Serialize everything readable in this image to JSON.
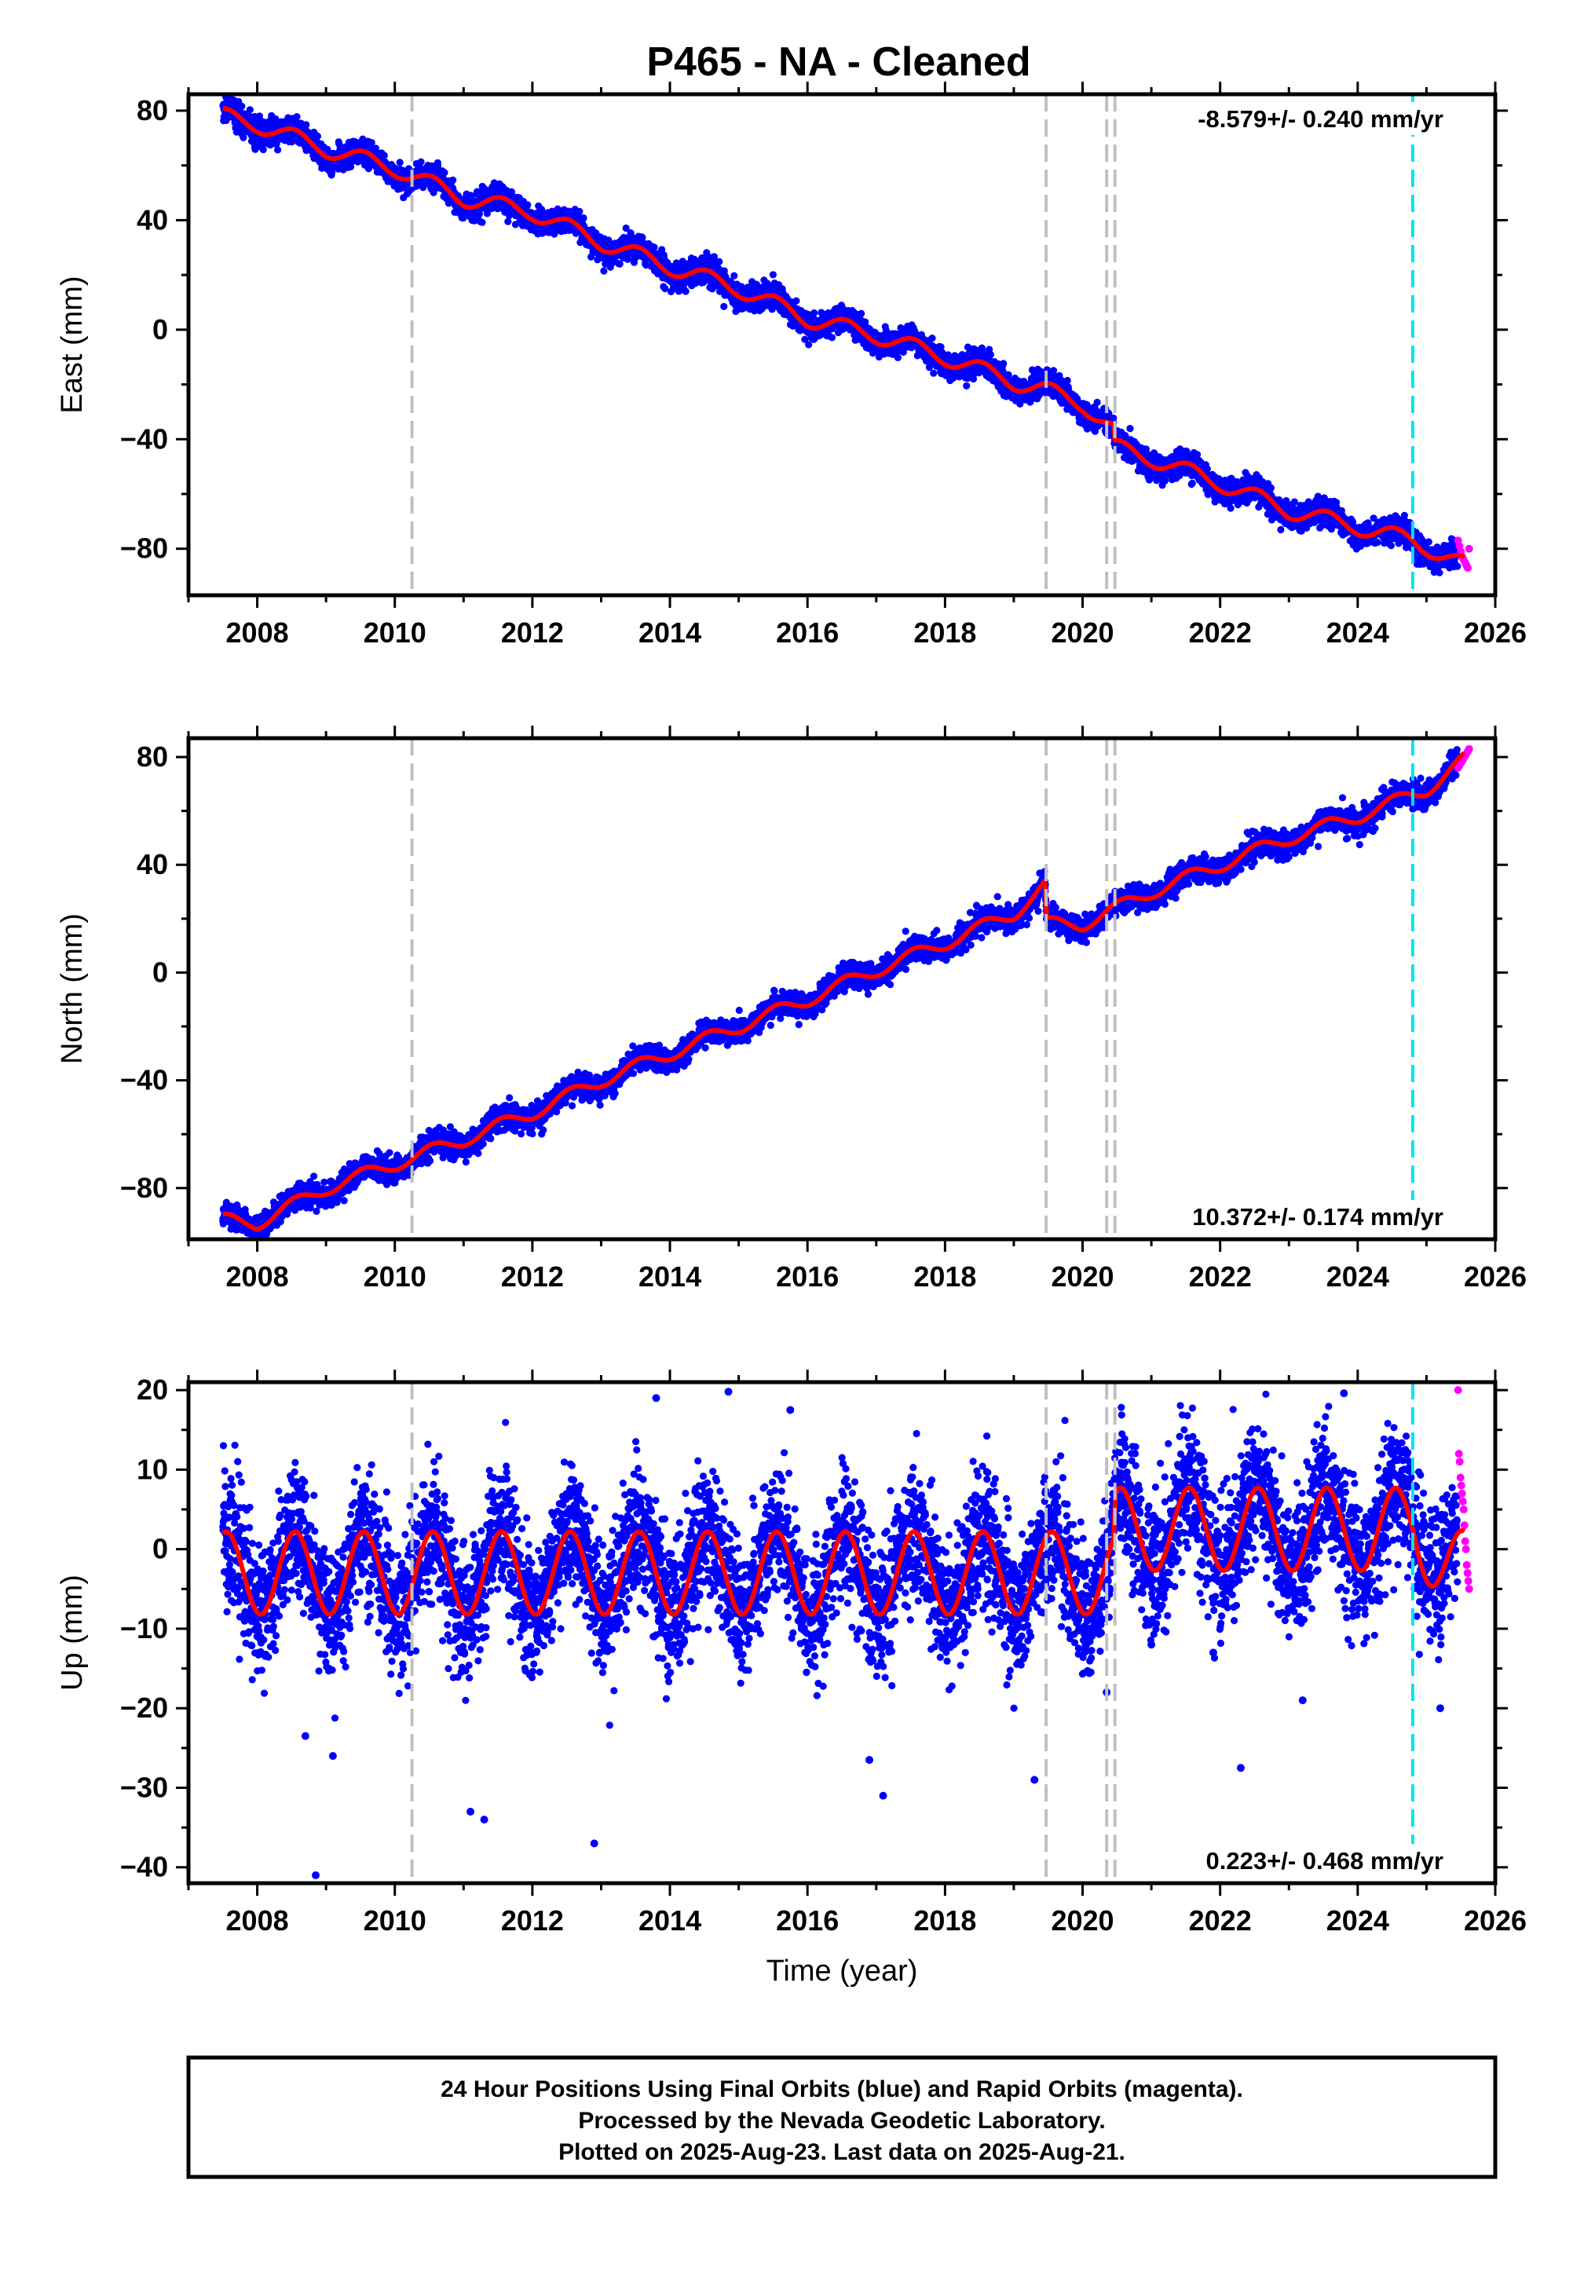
{
  "title": "P465  - NA - Cleaned",
  "colors": {
    "final_points": "#0000ff",
    "rapid_points": "#ff00ff",
    "model": "#ff0000",
    "event_lines": "#c0c0c0",
    "equipment_line": "#00e5ee"
  },
  "chart_data": [
    {
      "type": "scatter",
      "component": "East",
      "ylabel": "East (mm)",
      "xlabel": "",
      "xlim": [
        2007.0,
        2026.0
      ],
      "ylim": [
        -97,
        86
      ],
      "yticks": [
        80,
        40,
        0,
        -40,
        -80
      ],
      "ytick_labels": [
        "80",
        "40",
        "0",
        "−40",
        "−80"
      ],
      "xticks": [
        2008,
        2010,
        2012,
        2014,
        2016,
        2018,
        2020,
        2022,
        2024,
        2026
      ],
      "rate_label": "-8.579+/- 0.240 mm/yr",
      "rate_position": "top-right",
      "event_lines": [
        2010.25,
        2019.47,
        2020.35,
        2020.47
      ],
      "equipment_line": 2024.8,
      "start_value": 79,
      "final_x_end": 2025.45,
      "end_value": -86,
      "steps": [
        {
          "x": 2020.45,
          "value": -6
        }
      ],
      "annual_amplitude": 3,
      "noise_sd": 2.3,
      "model_anchors": [
        [
          2007.5,
          78
        ],
        [
          2008.0,
          75
        ],
        [
          2009.0,
          66
        ],
        [
          2010.0,
          59
        ],
        [
          2011.0,
          48
        ],
        [
          2012.0,
          43
        ],
        [
          2013.0,
          32
        ],
        [
          2014.0,
          23
        ],
        [
          2015.0,
          15
        ],
        [
          2016.0,
          4
        ],
        [
          2017.0,
          -2
        ],
        [
          2018.0,
          -10
        ],
        [
          2019.0,
          -19
        ],
        [
          2019.45,
          -22
        ],
        [
          2020.0,
          -27
        ],
        [
          2020.45,
          -37
        ],
        [
          2020.47,
          -43
        ],
        [
          2021.0,
          -47
        ],
        [
          2022.0,
          -56
        ],
        [
          2023.0,
          -66
        ],
        [
          2024.0,
          -72
        ],
        [
          2024.8,
          -77
        ],
        [
          2025.55,
          -86
        ]
      ],
      "rapid_points": {
        "x_start": 2025.46,
        "x_end": 2025.62,
        "values": [
          -77,
          -79,
          -81,
          -83,
          -84,
          -85,
          -86,
          -87,
          -80
        ]
      }
    },
    {
      "type": "scatter",
      "component": "North",
      "ylabel": "North (mm)",
      "xlabel": "",
      "xlim": [
        2007.0,
        2026.0
      ],
      "ylim": [
        -99,
        87
      ],
      "yticks": [
        80,
        40,
        0,
        -40,
        -80
      ],
      "ytick_labels": [
        "80",
        "40",
        "0",
        "−40",
        "−80"
      ],
      "xticks": [
        2008,
        2010,
        2012,
        2014,
        2016,
        2018,
        2020,
        2022,
        2024,
        2026
      ],
      "rate_label": "10.372+/- 0.174 mm/yr",
      "rate_position": "bottom-right",
      "event_lines": [
        2010.25,
        2019.47,
        2020.35,
        2020.47
      ],
      "equipment_line": 2024.8,
      "start_value": -92,
      "final_x_end": 2025.45,
      "end_value": 79,
      "steps": [
        {
          "x": 2019.47,
          "value": -14
        }
      ],
      "annual_amplitude": 2.5,
      "noise_sd": 2.2,
      "model_anchors": [
        [
          2007.5,
          -92
        ],
        [
          2008.0,
          -93
        ],
        [
          2009.0,
          -80
        ],
        [
          2010.0,
          -71
        ],
        [
          2011.0,
          -62
        ],
        [
          2012.0,
          -52
        ],
        [
          2013.0,
          -40
        ],
        [
          2014.0,
          -30
        ],
        [
          2015.0,
          -20
        ],
        [
          2016.0,
          -10
        ],
        [
          2017.0,
          1
        ],
        [
          2018.0,
          11
        ],
        [
          2019.0,
          22
        ],
        [
          2019.45,
          32
        ],
        [
          2019.48,
          18
        ],
        [
          2020.0,
          18
        ],
        [
          2021.0,
          30
        ],
        [
          2022.0,
          40
        ],
        [
          2023.0,
          50
        ],
        [
          2024.0,
          58
        ],
        [
          2025.0,
          68
        ],
        [
          2025.55,
          79
        ]
      ],
      "rapid_points": {
        "x_start": 2025.46,
        "x_end": 2025.62,
        "values": [
          76,
          77,
          78,
          79,
          80,
          81,
          82,
          83
        ]
      }
    },
    {
      "type": "scatter",
      "component": "Up",
      "ylabel": "Up (mm)",
      "xlabel": "Time (year)",
      "xlim": [
        2007.0,
        2026.0
      ],
      "ylim": [
        -42,
        21
      ],
      "yticks": [
        20,
        10,
        0,
        -10,
        -20,
        -30,
        -40
      ],
      "ytick_labels": [
        "20",
        "10",
        "0",
        "−10",
        "−20",
        "−30",
        "−40"
      ],
      "xticks": [
        2008,
        2010,
        2012,
        2014,
        2016,
        2018,
        2020,
        2022,
        2024,
        2026
      ],
      "rate_label": "0.223+/- 0.468 mm/yr",
      "rate_position": "bottom-right",
      "event_lines": [
        2010.25,
        2019.47,
        2020.35,
        2020.47
      ],
      "equipment_line": 2024.8,
      "start_value": -3,
      "final_x_end": 2025.45,
      "end_value": -3,
      "steps": [
        {
          "x": 2020.47,
          "value": 5
        }
      ],
      "annual_amplitude": 5.2,
      "noise_sd": 4.2,
      "model_anchors": [
        [
          2007.5,
          -3
        ],
        [
          2020.45,
          -3
        ],
        [
          2020.48,
          2.5
        ],
        [
          2024.8,
          2.5
        ],
        [
          2025.55,
          -3
        ]
      ],
      "rapid_points": {
        "x_start": 2025.46,
        "x_end": 2025.62,
        "values": [
          20,
          12,
          11,
          9,
          8,
          7,
          6,
          5,
          3,
          1,
          0,
          -2,
          -3,
          -4,
          -5
        ]
      },
      "outliers": [
        [
          2008.85,
          -41
        ],
        [
          2012.9,
          -37
        ],
        [
          2011.1,
          -33
        ],
        [
          2011.3,
          -34
        ],
        [
          2017.1,
          -31
        ],
        [
          2022.3,
          -27.5
        ],
        [
          2013.8,
          19
        ],
        [
          2014.85,
          19.8
        ],
        [
          2008.7,
          -23.5
        ],
        [
          2009.1,
          -26
        ],
        [
          2019.3,
          -29
        ],
        [
          2016.9,
          -26.5
        ],
        [
          2023.2,
          -19
        ],
        [
          2025.2,
          -20
        ],
        [
          2020.35,
          -18
        ],
        [
          2021.0,
          -12
        ],
        [
          2021.9,
          -13
        ],
        [
          2015.75,
          17.5
        ],
        [
          2023.8,
          19.6
        ]
      ]
    }
  ],
  "footer": {
    "line1": "24 Hour Positions Using Final Orbits (blue) and Rapid Orbits (magenta).",
    "line2": "Processed by the Nevada Geodetic Laboratory.",
    "line3": "Plotted on 2025-Aug-23. Last data on 2025-Aug-21."
  }
}
